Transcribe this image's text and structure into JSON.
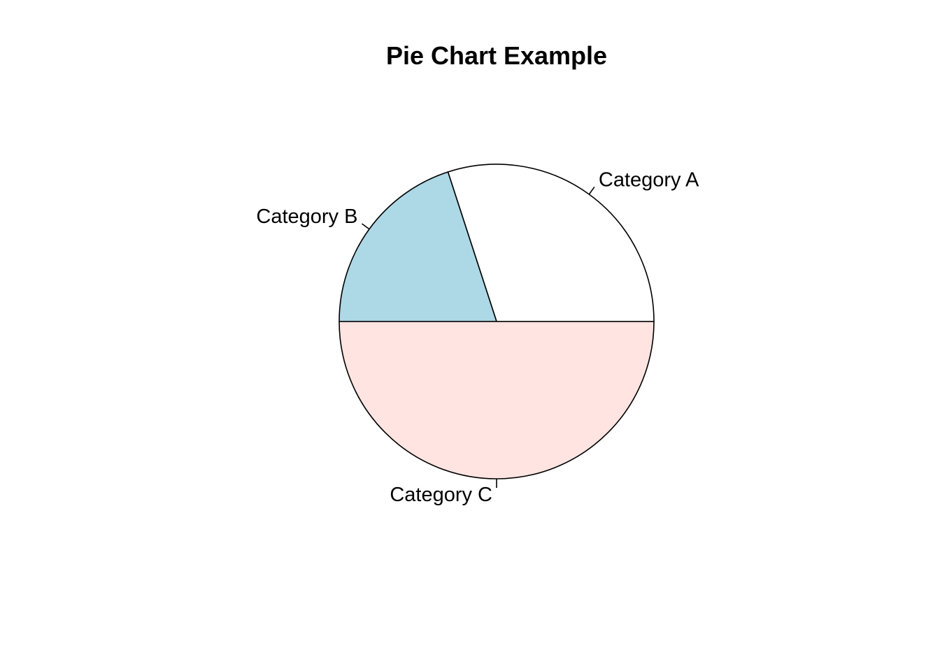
{
  "chart_data": {
    "type": "pie",
    "title": "Pie Chart Example",
    "categories": [
      "Category A",
      "Category B",
      "Category C"
    ],
    "values": [
      30,
      20,
      50
    ],
    "colors": [
      "#FFFFFF",
      "#ADD8E6",
      "#FFE4E1"
    ],
    "start_angle_deg": 0,
    "direction": "counterclockwise",
    "border_color": "#000000"
  }
}
